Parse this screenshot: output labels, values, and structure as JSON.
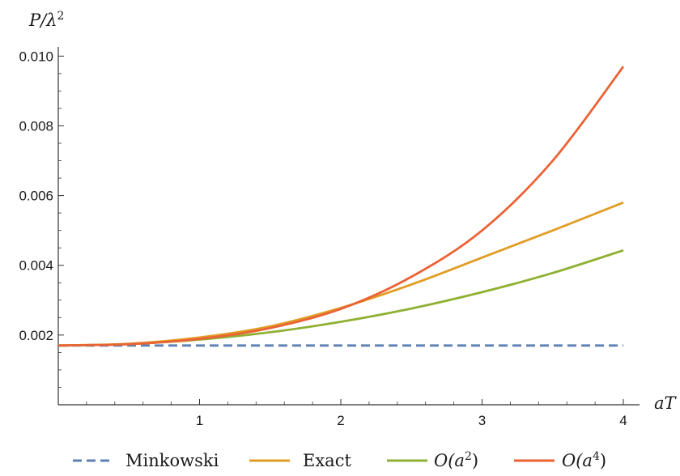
{
  "chart_data": {
    "type": "line",
    "ylabel": "P/λ²",
    "xlabel": "aT",
    "xlim": [
      0,
      4
    ],
    "ylim": [
      0,
      0.0101
    ],
    "x_ticks": [
      1,
      2,
      3,
      4
    ],
    "x_tick_labels": [
      "1",
      "2",
      "3",
      "4"
    ],
    "y_ticks": [
      0.002,
      0.004,
      0.006,
      0.008,
      0.01
    ],
    "y_tick_labels": [
      "0.002",
      "0.004",
      "0.006",
      "0.008",
      "0.010"
    ],
    "grid": false,
    "legend_position": "bottom",
    "series": [
      {
        "name": "Minkowski",
        "color": "#5e81b5",
        "dashed": true,
        "x": [
          0,
          0.5,
          1,
          1.5,
          2,
          2.5,
          3,
          3.5,
          4
        ],
        "y": [
          0.0017,
          0.0017,
          0.0017,
          0.0017,
          0.0017,
          0.0017,
          0.0017,
          0.0017,
          0.0017
        ]
      },
      {
        "name": "Exact",
        "color": "#e19c24",
        "dashed": false,
        "x": [
          0,
          0.5,
          1,
          1.5,
          2,
          2.5,
          3,
          3.5,
          4
        ],
        "y": [
          0.0017,
          0.00175,
          0.00193,
          0.00225,
          0.00278,
          0.00345,
          0.00422,
          0.005,
          0.0058
        ]
      },
      {
        "name": "O(a²)",
        "color": "#8fb032",
        "dashed": false,
        "x": [
          0,
          0.5,
          1,
          1.5,
          2,
          2.5,
          3,
          3.5,
          4
        ],
        "y": [
          0.0017,
          0.00174,
          0.00187,
          0.00208,
          0.00238,
          0.00276,
          0.00323,
          0.00378,
          0.00443
        ]
      },
      {
        "name": "O(a⁴)",
        "color": "#eb6235",
        "dashed": false,
        "x": [
          0,
          0.5,
          1,
          1.5,
          2,
          2.5,
          3,
          3.5,
          4
        ],
        "y": [
          0.0017,
          0.00174,
          0.00189,
          0.0022,
          0.00275,
          0.00367,
          0.005,
          0.007,
          0.0097
        ]
      }
    ]
  }
}
